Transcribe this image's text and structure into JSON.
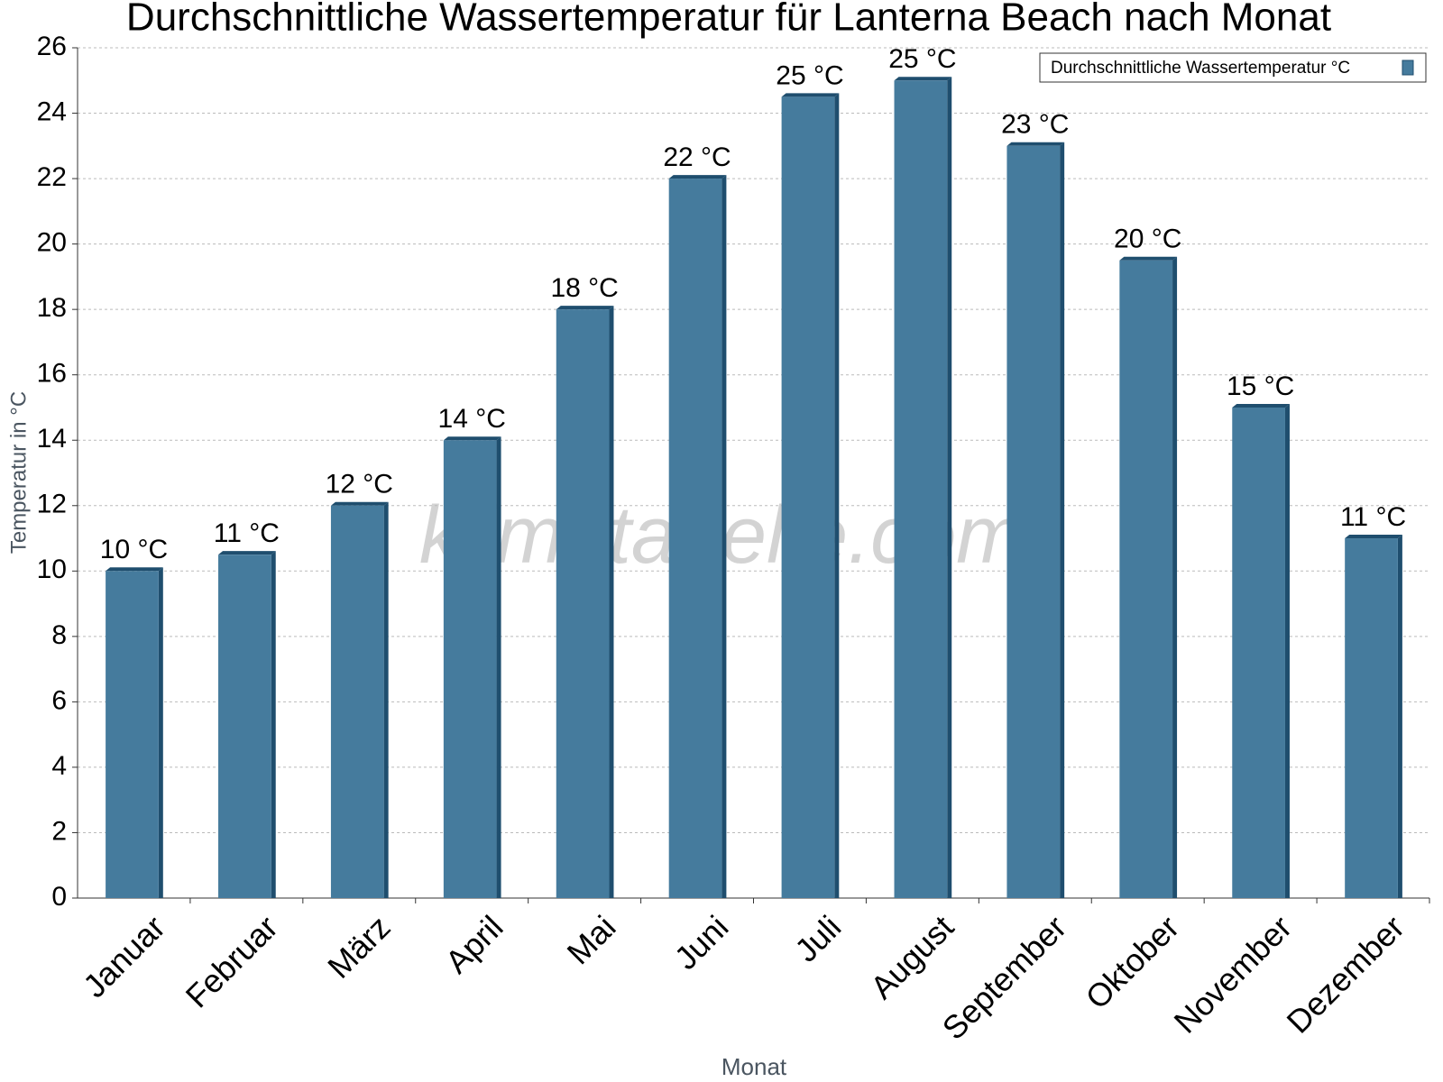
{
  "chart_data": {
    "type": "bar",
    "title": "Durchschnittliche Wassertemperatur für Lanterna Beach nach Monat",
    "x_label": "Monat",
    "y_label": "Temperatur in °C",
    "watermark": "klimatabelle.com",
    "categories": [
      "Januar",
      "Februar",
      "März",
      "April",
      "Mai",
      "Juni",
      "Juli",
      "August",
      "September",
      "Oktober",
      "November",
      "Dezember"
    ],
    "series": [
      {
        "name": "Durchschnittliche Wassertemperatur °C",
        "color": "#457b9d",
        "values": [
          10,
          10.5,
          12,
          14,
          18,
          22,
          24.5,
          25,
          23,
          19.5,
          15,
          11
        ],
        "value_labels": [
          "10 °C",
          "11 °C",
          "12 °C",
          "14 °C",
          "18 °C",
          "22 °C",
          "25 °C",
          "25 °C",
          "23 °C",
          "20 °C",
          "15 °C",
          "11 °C"
        ]
      }
    ],
    "ylim": [
      0,
      26
    ],
    "yticks": [
      0,
      2,
      4,
      6,
      8,
      10,
      12,
      14,
      16,
      18,
      20,
      22,
      24,
      26
    ],
    "grid": true,
    "legend": "top-right"
  }
}
